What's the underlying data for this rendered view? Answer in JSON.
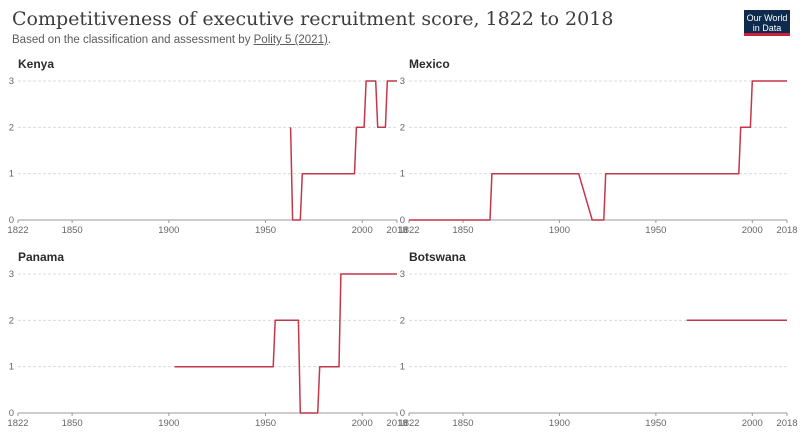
{
  "title": "Competitiveness of executive recruitment score, 1822 to 2018",
  "subtitle_prefix": "Based on the classification and assessment by ",
  "subtitle_source": "Polity 5 (2021)",
  "subtitle_suffix": ".",
  "logo": {
    "line1": "Our World",
    "line2": "in Data"
  },
  "colors": {
    "line": "#c4374a",
    "grid": "#dcdcdc",
    "logo_bg": "#0e2a4d",
    "logo_accent": "#cf1f3a"
  },
  "chart_data": [
    {
      "type": "line",
      "title": "Kenya",
      "xlim": [
        1822,
        2018
      ],
      "ylim": [
        0,
        3
      ],
      "xticks": [
        1822,
        1850,
        1900,
        1950,
        2000,
        2018
      ],
      "yticks": [
        0,
        1,
        2,
        3
      ],
      "series": [
        {
          "points": [
            [
              1963,
              2
            ],
            [
              1964,
              0
            ],
            [
              1968,
              0
            ],
            [
              1969,
              1
            ],
            [
              1996,
              1
            ],
            [
              1997,
              2
            ],
            [
              2001,
              2
            ],
            [
              2002,
              3
            ],
            [
              2007,
              3
            ],
            [
              2008,
              2
            ],
            [
              2012,
              2
            ],
            [
              2013,
              3
            ],
            [
              2018,
              3
            ]
          ]
        }
      ]
    },
    {
      "type": "line",
      "title": "Mexico",
      "xlim": [
        1822,
        2018
      ],
      "ylim": [
        0,
        3
      ],
      "xticks": [
        1822,
        1850,
        1900,
        1950,
        2000,
        2018
      ],
      "yticks": [
        0,
        1,
        2,
        3
      ],
      "series": [
        {
          "points": [
            [
              1822,
              0
            ],
            [
              1864,
              0
            ],
            [
              1865,
              1
            ],
            [
              1910,
              1
            ],
            [
              1917,
              0
            ],
            [
              1923,
              0
            ],
            [
              1924,
              1
            ],
            [
              1993,
              1
            ],
            [
              1994,
              2
            ],
            [
              1999,
              2
            ],
            [
              2000,
              3
            ],
            [
              2018,
              3
            ]
          ]
        }
      ]
    },
    {
      "type": "line",
      "title": "Panama",
      "xlim": [
        1822,
        2018
      ],
      "ylim": [
        0,
        3
      ],
      "xticks": [
        1822,
        1850,
        1900,
        1950,
        2000,
        2018
      ],
      "yticks": [
        0,
        1,
        2,
        3
      ],
      "series": [
        {
          "points": [
            [
              1903,
              1
            ],
            [
              1954,
              1
            ],
            [
              1955,
              2
            ],
            [
              1967,
              2
            ],
            [
              1968,
              0
            ],
            [
              1977,
              0
            ],
            [
              1978,
              1
            ],
            [
              1988,
              1
            ],
            [
              1989,
              3
            ],
            [
              2018,
              3
            ]
          ]
        }
      ]
    },
    {
      "type": "line",
      "title": "Botswana",
      "xlim": [
        1822,
        2018
      ],
      "ylim": [
        0,
        3
      ],
      "xticks": [
        1822,
        1850,
        1900,
        1950,
        2000,
        2018
      ],
      "yticks": [
        0,
        1,
        2,
        3
      ],
      "series": [
        {
          "points": [
            [
              1966,
              2
            ],
            [
              2018,
              2
            ]
          ]
        }
      ]
    }
  ]
}
